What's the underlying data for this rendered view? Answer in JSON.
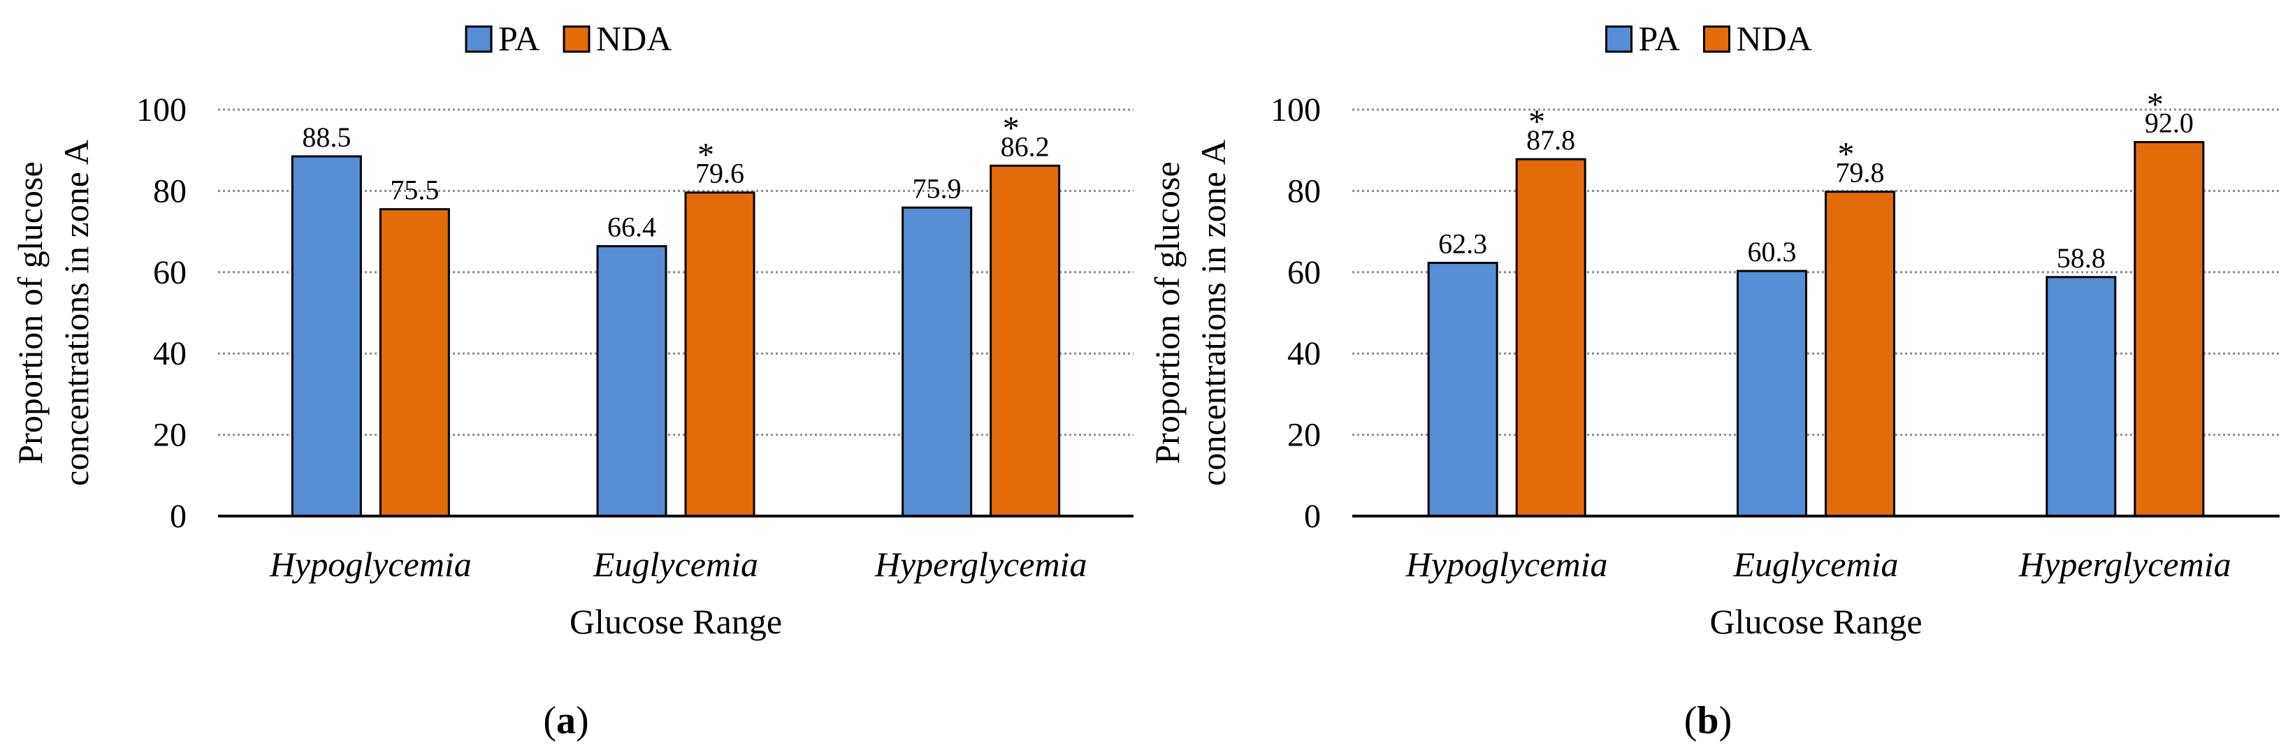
{
  "chart_data": [
    {
      "type": "bar",
      "panel_label": "a",
      "categories": [
        "Hypoglycemia",
        "Euglycemia",
        "Hyperglycemia"
      ],
      "series": [
        {
          "name": "PA",
          "color": "#558ED5",
          "values": [
            88.5,
            66.4,
            75.9
          ],
          "labels": [
            "88.5",
            "66.4",
            "75.9"
          ]
        },
        {
          "name": "NDA",
          "color": "#E36C09",
          "values": [
            75.5,
            79.6,
            86.2
          ],
          "labels": [
            "75.5",
            "79.6",
            "86.2"
          ]
        }
      ],
      "significance": [
        false,
        true,
        true
      ],
      "significance_marker": "*",
      "ylabel": [
        "Proportion of glucose",
        "concentrations in zone A"
      ],
      "xlabel": "Glucose Range",
      "ylim": [
        0,
        100
      ],
      "yticks": [
        "0",
        "20",
        "40",
        "60",
        "80",
        "100"
      ],
      "grid": true,
      "legend_position": "top-center"
    },
    {
      "type": "bar",
      "panel_label": "b",
      "categories": [
        "Hypoglycemia",
        "Euglycemia",
        "Hyperglycemia"
      ],
      "series": [
        {
          "name": "PA",
          "color": "#558ED5",
          "values": [
            62.3,
            60.3,
            58.8
          ],
          "labels": [
            "62.3",
            "60.3",
            "58.8"
          ]
        },
        {
          "name": "NDA",
          "color": "#E36C09",
          "values": [
            87.8,
            79.8,
            92.0
          ],
          "labels": [
            "87.8",
            "79.8",
            "92.0"
          ]
        }
      ],
      "significance": [
        true,
        true,
        true
      ],
      "significance_marker": "*",
      "ylabel": [
        "Proportion of glucose",
        "concentrations in zone A"
      ],
      "xlabel": "Glucose Range",
      "ylim": [
        0,
        100
      ],
      "yticks": [
        "0",
        "20",
        "40",
        "60",
        "80",
        "100"
      ],
      "grid": true,
      "legend_position": "top-center"
    }
  ]
}
